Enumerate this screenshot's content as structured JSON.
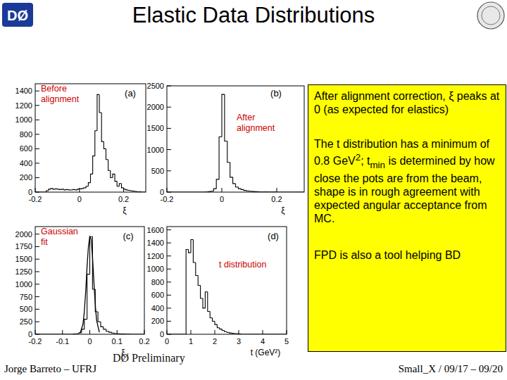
{
  "header": {
    "title": "Elastic Data Distributions",
    "logo": "DØ"
  },
  "chart_data": [
    {
      "type": "histogram",
      "panel_label": "(a)",
      "annotation": "Before alignment",
      "xlabel": "ξ",
      "xlim": [
        -0.2,
        0.3
      ],
      "xticks": [
        -0.2,
        0,
        0.2
      ],
      "ylim": [
        0,
        1500
      ],
      "yticks": [
        0,
        200,
        400,
        600,
        800,
        1000,
        1200,
        1400
      ],
      "bins": [
        -0.2,
        -0.19,
        -0.18,
        -0.17,
        -0.16,
        -0.15,
        -0.14,
        -0.13,
        -0.12,
        -0.11,
        -0.1,
        -0.09,
        -0.08,
        -0.07,
        -0.06,
        -0.05,
        -0.04,
        -0.03,
        -0.02,
        -0.01,
        0,
        0.01,
        0.02,
        0.03,
        0.04,
        0.05,
        0.06,
        0.07,
        0.08,
        0.09,
        0.1,
        0.11,
        0.12,
        0.13,
        0.14,
        0.15,
        0.16,
        0.17,
        0.18,
        0.19,
        0.2,
        0.21,
        0.22,
        0.23,
        0.24,
        0.25,
        0.26,
        0.27,
        0.28,
        0.29,
        0.3
      ],
      "values": [
        0,
        0,
        0,
        0,
        0,
        20,
        40,
        50,
        40,
        45,
        40,
        35,
        40,
        30,
        35,
        30,
        30,
        35,
        30,
        40,
        45,
        50,
        60,
        80,
        130,
        250,
        500,
        850,
        1350,
        1100,
        700,
        600,
        450,
        300,
        200,
        250,
        150,
        80,
        120,
        60,
        40,
        30,
        25,
        20,
        15,
        10,
        5,
        5,
        0,
        0
      ]
    },
    {
      "type": "histogram",
      "panel_label": "(b)",
      "annotation": "After alignment",
      "xlabel": "ξ",
      "xlim": [
        -0.2,
        0.3
      ],
      "xticks": [
        -0.2,
        0,
        0.2
      ],
      "ylim": [
        0,
        2500
      ],
      "yticks": [
        0,
        500,
        1000,
        1500,
        2000,
        2500
      ],
      "bins": [
        -0.2,
        -0.19,
        -0.18,
        -0.17,
        -0.16,
        -0.15,
        -0.14,
        -0.13,
        -0.12,
        -0.11,
        -0.1,
        -0.09,
        -0.08,
        -0.07,
        -0.06,
        -0.05,
        -0.04,
        -0.03,
        -0.02,
        -0.01,
        0,
        0.01,
        0.02,
        0.03,
        0.04,
        0.05,
        0.06,
        0.07,
        0.08,
        0.09,
        0.1,
        0.11,
        0.12,
        0.13,
        0.14,
        0.15,
        0.16,
        0.17,
        0.18,
        0.19,
        0.2,
        0.21,
        0.22,
        0.23,
        0.24,
        0.25,
        0.26,
        0.27,
        0.28,
        0.29,
        0.3
      ],
      "values": [
        0,
        0,
        0,
        0,
        0,
        0,
        0,
        0,
        0,
        0,
        0,
        0,
        0,
        0,
        5,
        10,
        20,
        80,
        300,
        1300,
        2300,
        1200,
        700,
        350,
        200,
        120,
        80,
        60,
        40,
        30,
        20,
        15,
        10,
        8,
        5,
        5,
        5,
        3,
        3,
        2,
        0,
        0,
        0,
        0,
        0,
        0,
        0,
        0,
        0,
        0
      ]
    },
    {
      "type": "histogram",
      "panel_label": "(c)",
      "annotation": "Gaussian fit",
      "xlabel": "ξ",
      "xlim": [
        -0.2,
        0.2
      ],
      "xticks": [
        -0.2,
        -0.1,
        0,
        0.1,
        0.2
      ],
      "ylim": [
        0,
        2150
      ],
      "yticks": [
        0,
        250,
        500,
        750,
        1000,
        1250,
        1500,
        1750,
        2000
      ],
      "bins": [
        -0.2,
        -0.19,
        -0.18,
        -0.17,
        -0.16,
        -0.15,
        -0.14,
        -0.13,
        -0.12,
        -0.11,
        -0.1,
        -0.09,
        -0.08,
        -0.07,
        -0.06,
        -0.05,
        -0.04,
        -0.03,
        -0.02,
        -0.01,
        0,
        0.01,
        0.02,
        0.03,
        0.04,
        0.05,
        0.06,
        0.07,
        0.08,
        0.09,
        0.1,
        0.11,
        0.12,
        0.13,
        0.14,
        0.15,
        0.16,
        0.17,
        0.18,
        0.19,
        0.2
      ],
      "values": [
        0,
        0,
        0,
        0,
        0,
        0,
        0,
        0,
        0,
        0,
        0,
        0,
        0,
        0,
        5,
        10,
        30,
        100,
        300,
        1200,
        1950,
        900,
        450,
        250,
        150,
        100,
        60,
        40,
        25,
        15,
        10,
        8,
        5,
        3,
        2,
        0,
        0,
        0,
        0,
        0
      ],
      "fit": {
        "type": "line",
        "x": [
          -0.035,
          -0.025,
          -0.02,
          -0.015,
          -0.01,
          -0.005,
          0,
          0.005,
          0.01,
          0.015,
          0.02,
          0.025,
          0.035
        ],
        "values": [
          30,
          200,
          450,
          850,
          1350,
          1750,
          1950,
          1900,
          1550,
          1050,
          600,
          280,
          40
        ]
      }
    },
    {
      "type": "histogram",
      "panel_label": "(d)",
      "annotation": "t distribution",
      "xlabel": "t (GeV²)",
      "xlim": [
        0,
        5
      ],
      "xticks": [
        0,
        1,
        2,
        3,
        4,
        5
      ],
      "ylim": [
        0,
        1650
      ],
      "yticks": [
        0,
        200,
        400,
        600,
        800,
        1000,
        1200,
        1400,
        1600
      ],
      "bins": [
        0,
        0.1,
        0.2,
        0.3,
        0.4,
        0.5,
        0.6,
        0.7,
        0.8,
        0.9,
        1,
        1.1,
        1.2,
        1.3,
        1.4,
        1.5,
        1.6,
        1.7,
        1.8,
        1.9,
        2,
        2.1,
        2.2,
        2.3,
        2.4,
        2.5,
        2.6,
        2.7,
        2.8,
        2.9,
        3,
        3.1,
        3.2,
        3.3,
        3.4,
        3.5,
        3.6,
        3.7,
        3.8,
        3.9,
        4,
        4.1,
        4.2,
        4.3,
        4.4,
        4.5,
        4.6,
        4.7,
        4.8,
        4.9,
        5
      ],
      "values": [
        0,
        0,
        0,
        0,
        0,
        0,
        0,
        0,
        1300,
        1250,
        1450,
        1100,
        900,
        750,
        550,
        400,
        650,
        350,
        250,
        200,
        150,
        100,
        80,
        60,
        40,
        30,
        20,
        15,
        10,
        10,
        5,
        0,
        0,
        0,
        0,
        0,
        0,
        0,
        0,
        0,
        0,
        0,
        0,
        0,
        0,
        0,
        0,
        0,
        0,
        0
      ]
    }
  ],
  "preliminary": "DØ Preliminary",
  "notes": [
    [
      {
        "text": "After alignment correction, ξ peaks at 0 (as expected for elastics)"
      }
    ],
    [
      {
        "text": "The t distribution has a minimum of 0.8 GeV"
      },
      {
        "sup": "2"
      },
      {
        "text": "; t"
      },
      {
        "sub": "min"
      },
      {
        "text": " is determined by how close the pots are from the beam, shape is in rough agreement with expected angular acceptance from MC."
      }
    ],
    [
      {
        "text": "FPD is also a tool helping BD"
      }
    ]
  ],
  "footer": {
    "left": "Jorge Barreto – UFRJ",
    "right": "Small_X / 09/17 – 09/20"
  }
}
